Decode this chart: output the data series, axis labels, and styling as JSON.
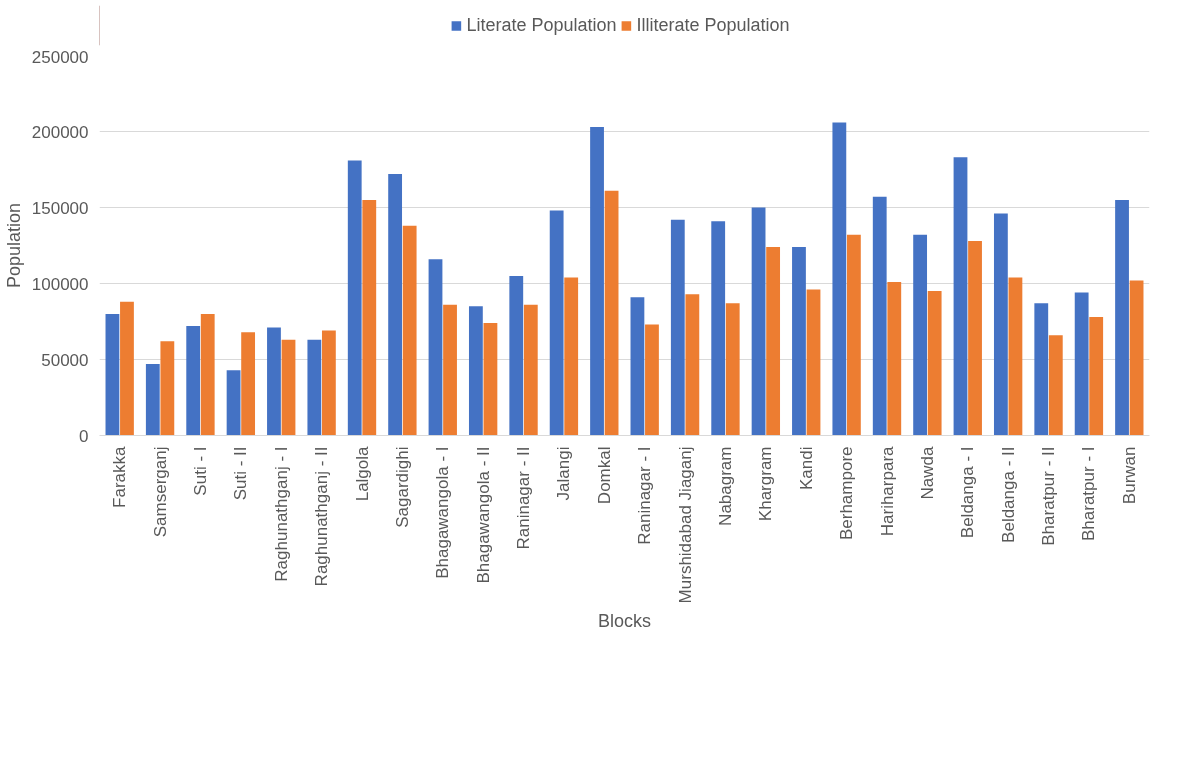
{
  "chart_data": {
    "type": "bar",
    "xlabel": "Blocks",
    "ylabel": "Population",
    "categories": [
      "Farakka",
      "Samserganj",
      "Suti - I",
      "Suti - II",
      "Raghunathganj - I",
      "Raghunathganj - II",
      "Lalgola",
      "Sagardighi",
      "Bhagawangola - I",
      "Bhagawangola - II",
      "Raninagar - II",
      "Jalangi",
      "Domkal",
      "Raninagar - I",
      "Murshidabad Jiaganj",
      "Nabagram",
      "Khargram",
      "Kandi",
      "Berhampore",
      "Hariharpara",
      "Nawda",
      "Beldanga - I",
      "Beldanga - II",
      "Bharatpur - II",
      "Bharatpur - I",
      "Burwan"
    ],
    "series": [
      {
        "name": "Literate Population",
        "color": "#4472c4",
        "values": [
          80000,
          47000,
          72000,
          43000,
          71000,
          63000,
          181000,
          172000,
          116000,
          85000,
          105000,
          148000,
          203000,
          91000,
          142000,
          141000,
          150000,
          124000,
          206000,
          157000,
          132000,
          183000,
          146000,
          87000,
          94000,
          155000
        ]
      },
      {
        "name": "Illiterate Population",
        "color": "#ed7d31",
        "values": [
          88000,
          62000,
          80000,
          68000,
          63000,
          69000,
          155000,
          138000,
          86000,
          74000,
          86000,
          104000,
          161000,
          73000,
          93000,
          87000,
          124000,
          96000,
          132000,
          101000,
          95000,
          128000,
          104000,
          66000,
          78000,
          102000
        ]
      }
    ],
    "ylim": [
      0,
      250000
    ],
    "yticks": [
      0,
      50000,
      100000,
      150000,
      200000,
      250000
    ],
    "grid": "y",
    "legend": "top"
  }
}
